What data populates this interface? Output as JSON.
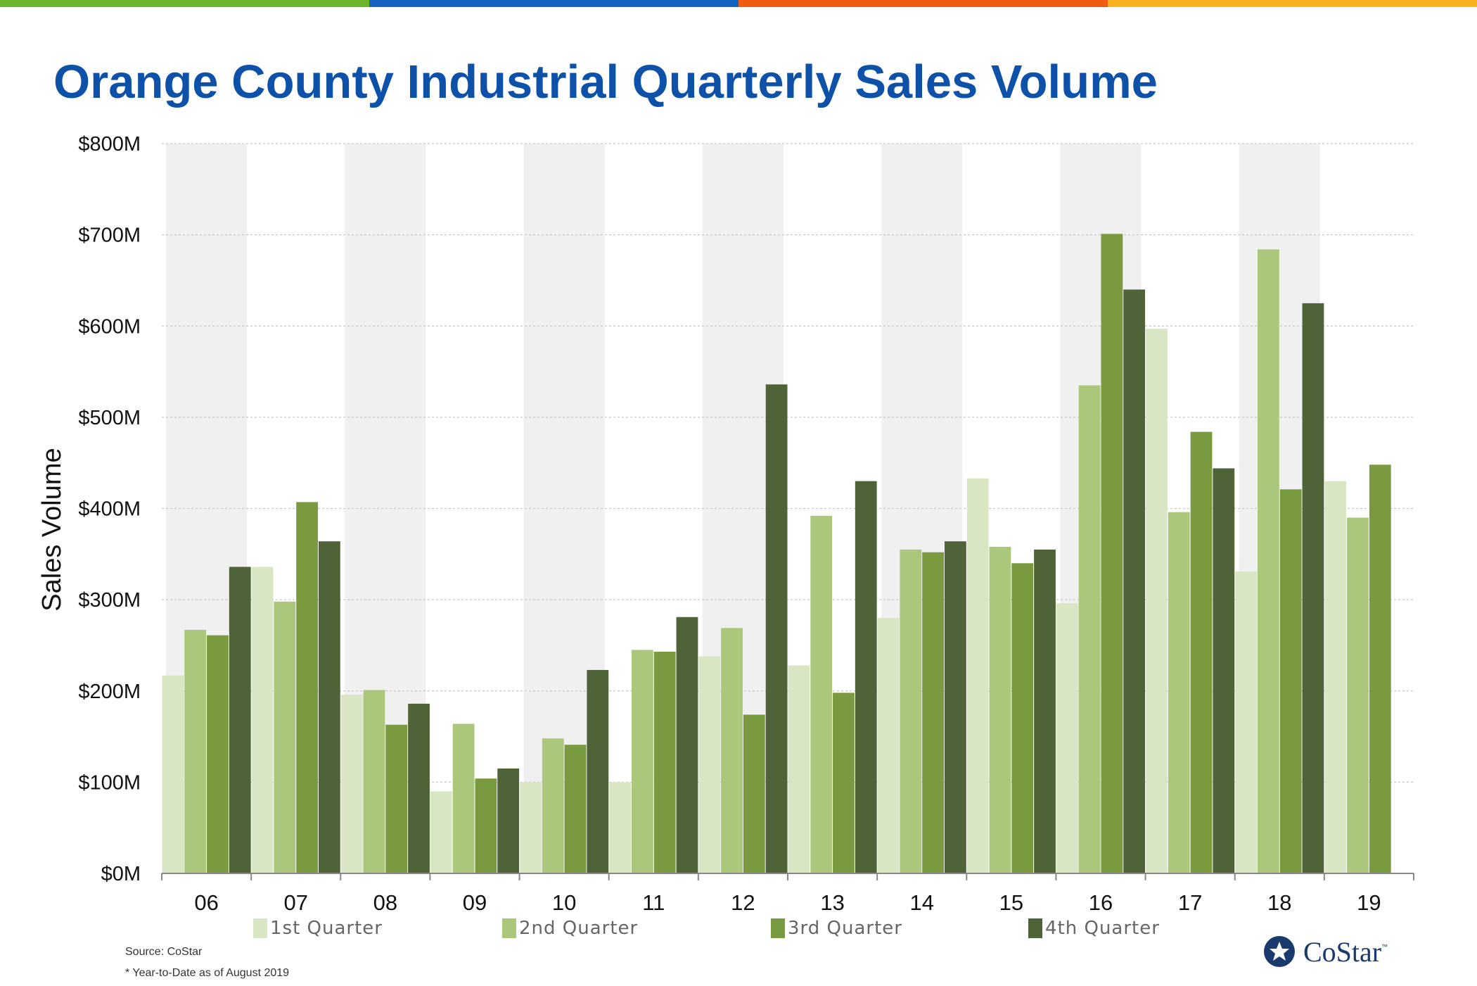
{
  "colors": {
    "top_bar": [
      "#6db52a",
      "#1565c0",
      "#ef5b12",
      "#f7b21c"
    ],
    "title": "#0d52a8",
    "q1": "#d9e6c3",
    "q2": "#abc77c",
    "q3": "#7a9a3f",
    "q4": "#4f6339",
    "band": "#f0f0f0"
  },
  "title": "Orange County Industrial Quarterly Sales Volume",
  "source": "Source: CoStar",
  "footnote": "* Year-to-Date as of August 2019",
  "logo": {
    "text": "CoStar",
    "tm": "™",
    "icon": "costar-star-icon"
  },
  "chart_data": {
    "type": "bar",
    "title": "Orange County Industrial Quarterly Sales Volume",
    "xlabel": "",
    "ylabel": "Sales Volume",
    "ylim": [
      0,
      800
    ],
    "yticks": [
      "$0M",
      "$100M",
      "$200M",
      "$300M",
      "$400M",
      "$500M",
      "$600M",
      "$700M",
      "$800M"
    ],
    "categories": [
      "06",
      "07",
      "08",
      "09",
      "10",
      "11",
      "12",
      "13",
      "14",
      "15",
      "16",
      "17",
      "18",
      "19"
    ],
    "legend_position": "bottom",
    "grid": true,
    "series": [
      {
        "name": "1st Quarter",
        "values": [
          217,
          336,
          196,
          90,
          100,
          100,
          238,
          228,
          280,
          433,
          296,
          597,
          331,
          430
        ]
      },
      {
        "name": "2nd Quarter",
        "values": [
          267,
          298,
          201,
          164,
          148,
          245,
          269,
          392,
          355,
          358,
          535,
          396,
          684,
          390
        ]
      },
      {
        "name": "3rd Quarter",
        "values": [
          261,
          407,
          163,
          104,
          141,
          243,
          174,
          198,
          352,
          340,
          701,
          484,
          421,
          448
        ]
      },
      {
        "name": "4th Quarter",
        "values": [
          336,
          364,
          186,
          115,
          223,
          281,
          536,
          430,
          364,
          355,
          640,
          444,
          625,
          null
        ]
      }
    ]
  }
}
